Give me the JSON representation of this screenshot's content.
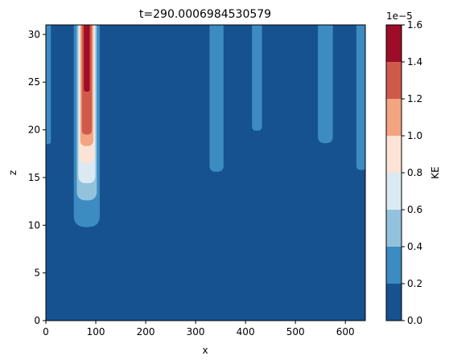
{
  "chart_data": {
    "type": "heatmap",
    "subtype": "filled-contour",
    "title": "t=290.0006984530579",
    "xlabel": "x",
    "ylabel": "z",
    "xlim": [
      0,
      640
    ],
    "ylim": [
      0,
      31
    ],
    "xticks": [
      "0",
      "100",
      "200",
      "300",
      "400",
      "500",
      "600"
    ],
    "yticks": [
      "0",
      "5",
      "10",
      "15",
      "20",
      "25",
      "30"
    ],
    "colorbar": {
      "label": "KE",
      "offset_text": "1e−5",
      "levels": [
        0.0,
        0.2,
        0.4,
        0.6,
        0.8,
        1.0,
        1.2,
        1.4,
        1.6
      ],
      "tick_labels": [
        "0.0",
        "0.2",
        "0.4",
        "0.6",
        "0.8",
        "1.0",
        "1.2",
        "1.4",
        "1.6"
      ],
      "colors": [
        "#175290",
        "#3c8bc1",
        "#93c2dd",
        "#dbe9f2",
        "#fbe4d5",
        "#f3a481",
        "#d05a4a",
        "#9e0d27"
      ]
    },
    "plumes": [
      {
        "x_center": 82,
        "bottom_z": 9.8,
        "max_level": 7,
        "level_bottoms": [
          9.8,
          12.6,
          14.4,
          16.5,
          18.3,
          19.5,
          24.0
        ],
        "level_halfwidths": [
          26,
          20,
          17,
          15,
          13,
          10,
          6
        ]
      },
      {
        "x_center": 342,
        "bottom_z": 15.6,
        "max_level": 1,
        "level_bottoms": [
          15.6
        ],
        "level_halfwidths": [
          14
        ]
      },
      {
        "x_center": 423,
        "bottom_z": 19.9,
        "max_level": 1,
        "level_bottoms": [
          19.9
        ],
        "level_halfwidths": [
          10
        ]
      },
      {
        "x_center": 560,
        "bottom_z": 18.6,
        "max_level": 1,
        "level_bottoms": [
          18.6
        ],
        "level_halfwidths": [
          15
        ]
      },
      {
        "x_center": 632,
        "bottom_z": 15.8,
        "max_level": 1,
        "level_bottoms": [
          15.8
        ],
        "level_halfwidths": [
          10
        ]
      },
      {
        "x_center": 3,
        "bottom_z": 18.5,
        "max_level": 1,
        "level_bottoms": [
          18.5
        ],
        "level_halfwidths": [
          7
        ]
      }
    ]
  }
}
